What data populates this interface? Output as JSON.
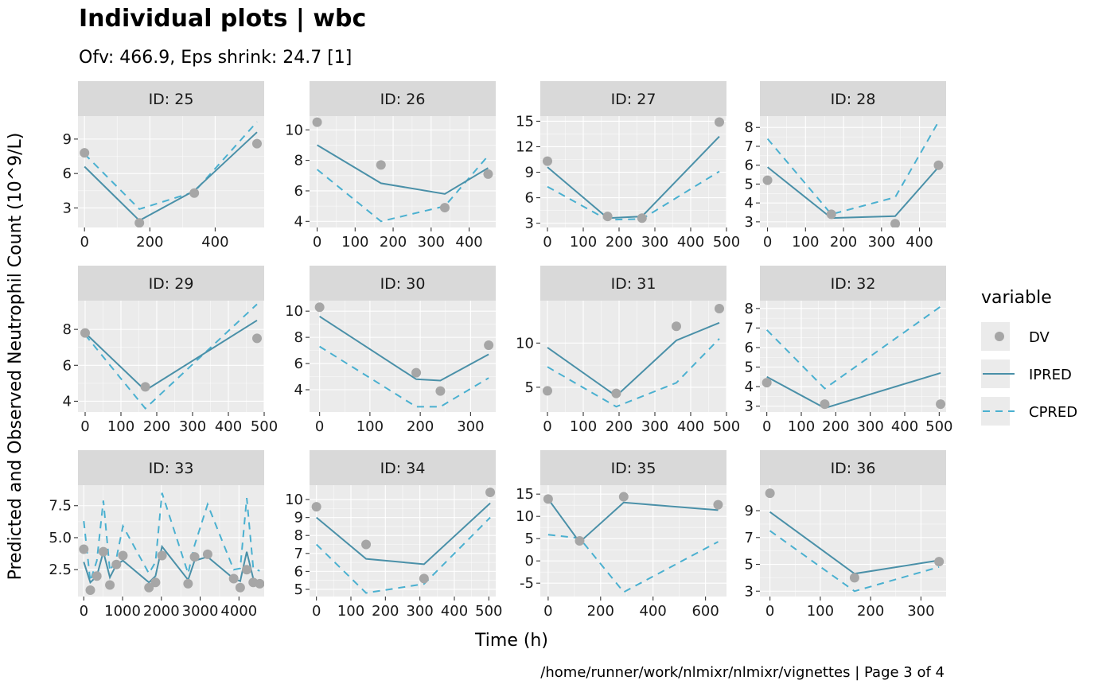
{
  "chart_data": {
    "type": "line",
    "title": "Individual plots | wbc",
    "subtitle": "Ofv: 466.9, Eps shrink: 24.7 [1]",
    "xlabel": "Time (h)",
    "ylabel": "Predicted and Observed Neutrophil Count (10^9/L)",
    "caption": "/home/runner/work/nlmixr/nlmixr/vignettes | Page 3 of 4",
    "legend": {
      "title": "variable",
      "placement": "right",
      "items": [
        {
          "key": "DV",
          "label": "DV",
          "kind": "point",
          "color": "#a6a6a6"
        },
        {
          "key": "IPRED",
          "label": "IPRED",
          "kind": "solid",
          "color": "#4a90a8"
        },
        {
          "key": "CPRED",
          "label": "CPRED",
          "kind": "dashed",
          "color": "#4ab0d0"
        }
      ]
    },
    "panels": [
      {
        "id": "ID: 25",
        "xlim": [
          -20,
          550
        ],
        "ylim": [
          1.3,
          11.0
        ],
        "xticks": [
          0,
          200,
          400
        ],
        "yticks": [
          3,
          6,
          9
        ],
        "dv": [
          [
            0,
            7.8
          ],
          [
            168,
            1.7
          ],
          [
            336,
            4.3
          ],
          [
            528,
            8.6
          ]
        ],
        "ipred": [
          [
            0,
            6.6
          ],
          [
            168,
            1.9
          ],
          [
            336,
            4.5
          ],
          [
            528,
            9.6
          ]
        ],
        "cpred": [
          [
            0,
            7.7
          ],
          [
            168,
            2.9
          ],
          [
            336,
            4.4
          ],
          [
            528,
            10.5
          ]
        ]
      },
      {
        "id": "ID: 26",
        "xlim": [
          -20,
          470
        ],
        "ylim": [
          3.6,
          10.9
        ],
        "xticks": [
          0,
          100,
          200,
          300,
          400
        ],
        "yticks": [
          4,
          6,
          8,
          10
        ],
        "dv": [
          [
            0,
            10.5
          ],
          [
            168,
            7.7
          ],
          [
            336,
            4.9
          ],
          [
            450,
            7.1
          ]
        ],
        "ipred": [
          [
            0,
            9.0
          ],
          [
            168,
            6.5
          ],
          [
            336,
            5.8
          ],
          [
            450,
            7.5
          ]
        ],
        "cpred": [
          [
            0,
            7.4
          ],
          [
            168,
            4.0
          ],
          [
            336,
            5.0
          ],
          [
            450,
            8.3
          ]
        ]
      },
      {
        "id": "ID: 27",
        "xlim": [
          -20,
          500
        ],
        "ylim": [
          2.5,
          15.6
        ],
        "xticks": [
          0,
          100,
          200,
          300,
          400,
          500
        ],
        "yticks": [
          3,
          6,
          9,
          12,
          15
        ],
        "dv": [
          [
            0,
            10.3
          ],
          [
            168,
            3.8
          ],
          [
            264,
            3.6
          ],
          [
            480,
            14.9
          ]
        ],
        "ipred": [
          [
            0,
            9.6
          ],
          [
            168,
            3.6
          ],
          [
            264,
            3.8
          ],
          [
            480,
            13.2
          ]
        ],
        "cpred": [
          [
            0,
            7.3
          ],
          [
            168,
            3.4
          ],
          [
            264,
            3.5
          ],
          [
            480,
            9.1
          ]
        ]
      },
      {
        "id": "ID: 28",
        "xlim": [
          -20,
          470
        ],
        "ylim": [
          2.7,
          8.6
        ],
        "xticks": [
          0,
          100,
          200,
          300,
          400
        ],
        "yticks": [
          3,
          4,
          5,
          6,
          7,
          8
        ],
        "dv": [
          [
            0,
            5.2
          ],
          [
            168,
            3.4
          ],
          [
            336,
            2.9
          ],
          [
            450,
            6.0
          ]
        ],
        "ipred": [
          [
            0,
            5.9
          ],
          [
            168,
            3.2
          ],
          [
            336,
            3.3
          ],
          [
            450,
            5.9
          ]
        ],
        "cpred": [
          [
            0,
            7.4
          ],
          [
            168,
            3.4
          ],
          [
            336,
            4.3
          ],
          [
            450,
            8.3
          ]
        ]
      },
      {
        "id": "ID: 29",
        "xlim": [
          -20,
          500
        ],
        "ylim": [
          3.4,
          9.6
        ],
        "xticks": [
          0,
          100,
          200,
          300,
          400,
          500
        ],
        "yticks": [
          4,
          6,
          8
        ],
        "dv": [
          [
            0,
            7.8
          ],
          [
            168,
            4.8
          ],
          [
            480,
            7.5
          ]
        ],
        "ipred": [
          [
            0,
            7.8
          ],
          [
            168,
            4.6
          ],
          [
            480,
            8.5
          ]
        ],
        "cpred": [
          [
            0,
            7.7
          ],
          [
            168,
            3.6
          ],
          [
            480,
            9.4
          ]
        ]
      },
      {
        "id": "ID: 30",
        "xlim": [
          -20,
          350
        ],
        "ylim": [
          2.3,
          10.8
        ],
        "xticks": [
          0,
          100,
          200,
          300
        ],
        "yticks": [
          4,
          6,
          8,
          10
        ],
        "dv": [
          [
            0,
            10.3
          ],
          [
            192,
            5.3
          ],
          [
            240,
            3.9
          ],
          [
            336,
            7.4
          ]
        ],
        "ipred": [
          [
            0,
            9.6
          ],
          [
            192,
            4.8
          ],
          [
            240,
            4.7
          ],
          [
            336,
            6.7
          ]
        ],
        "cpred": [
          [
            0,
            7.3
          ],
          [
            192,
            2.7
          ],
          [
            240,
            2.7
          ],
          [
            336,
            4.9
          ]
        ]
      },
      {
        "id": "ID: 31",
        "xlim": [
          -20,
          500
        ],
        "ylim": [
          2.2,
          14.8
        ],
        "xticks": [
          0,
          100,
          200,
          300,
          400,
          500
        ],
        "yticks": [
          5,
          10
        ],
        "dv": [
          [
            0,
            4.6
          ],
          [
            192,
            4.3
          ],
          [
            360,
            11.9
          ],
          [
            480,
            13.9
          ]
        ],
        "ipred": [
          [
            0,
            9.5
          ],
          [
            192,
            4.0
          ],
          [
            360,
            10.3
          ],
          [
            480,
            12.3
          ]
        ],
        "cpred": [
          [
            0,
            7.3
          ],
          [
            192,
            2.8
          ],
          [
            360,
            5.5
          ],
          [
            480,
            10.5
          ]
        ]
      },
      {
        "id": "ID: 32",
        "xlim": [
          -20,
          520
        ],
        "ylim": [
          2.7,
          8.4
        ],
        "xticks": [
          0,
          100,
          200,
          300,
          400,
          500
        ],
        "yticks": [
          3,
          4,
          5,
          6,
          7,
          8
        ],
        "dv": [
          [
            0,
            4.2
          ],
          [
            168,
            3.1
          ],
          [
            504,
            3.1
          ]
        ],
        "ipred": [
          [
            0,
            4.5
          ],
          [
            168,
            2.9
          ],
          [
            504,
            4.7
          ]
        ],
        "cpred": [
          [
            0,
            6.9
          ],
          [
            168,
            3.9
          ],
          [
            504,
            8.1
          ]
        ]
      },
      {
        "id": "ID: 33",
        "xlim": [
          -150,
          4650
        ],
        "ylim": [
          0.4,
          9.1
        ],
        "xticks": [
          0,
          1000,
          2000,
          3000,
          4000
        ],
        "yticks": [
          2.5,
          5.0,
          7.5
        ],
        "dv": [
          [
            0,
            4.1
          ],
          [
            168,
            0.9
          ],
          [
            336,
            2.0
          ],
          [
            504,
            3.9
          ],
          [
            672,
            1.3
          ],
          [
            840,
            2.9
          ],
          [
            1008,
            3.6
          ],
          [
            1680,
            1.1
          ],
          [
            1848,
            1.5
          ],
          [
            2016,
            3.6
          ],
          [
            2688,
            1.4
          ],
          [
            2856,
            3.5
          ],
          [
            3192,
            3.7
          ],
          [
            3864,
            1.8
          ],
          [
            4032,
            1.1
          ],
          [
            4200,
            2.5
          ],
          [
            4368,
            1.5
          ],
          [
            4536,
            1.4
          ]
        ],
        "ipred": [
          [
            0,
            3.1
          ],
          [
            168,
            1.5
          ],
          [
            336,
            2.0
          ],
          [
            504,
            3.9
          ],
          [
            672,
            1.9
          ],
          [
            840,
            2.9
          ],
          [
            1008,
            3.2
          ],
          [
            1680,
            1.5
          ],
          [
            1848,
            2.0
          ],
          [
            2016,
            4.3
          ],
          [
            2688,
            1.7
          ],
          [
            2856,
            3.2
          ],
          [
            3192,
            3.5
          ],
          [
            3864,
            1.8
          ],
          [
            4032,
            1.6
          ],
          [
            4200,
            3.9
          ],
          [
            4368,
            1.8
          ],
          [
            4536,
            1.5
          ]
        ],
        "cpred": [
          [
            0,
            6.3
          ],
          [
            168,
            1.6
          ],
          [
            336,
            3.2
          ],
          [
            504,
            7.9
          ],
          [
            672,
            2.4
          ],
          [
            840,
            3.4
          ],
          [
            1008,
            5.9
          ],
          [
            1680,
            2.2
          ],
          [
            1848,
            3.1
          ],
          [
            2016,
            8.5
          ],
          [
            2688,
            2.2
          ],
          [
            2856,
            4.4
          ],
          [
            3192,
            7.6
          ],
          [
            3864,
            2.5
          ],
          [
            4032,
            2.6
          ],
          [
            4200,
            8.1
          ],
          [
            4368,
            2.6
          ],
          [
            4536,
            2.4
          ]
        ]
      },
      {
        "id": "ID: 34",
        "xlim": [
          -20,
          520
        ],
        "ylim": [
          4.6,
          10.8
        ],
        "xticks": [
          0,
          100,
          200,
          300,
          400,
          500
        ],
        "yticks": [
          5,
          6,
          7,
          8,
          9,
          10
        ],
        "dv": [
          [
            0,
            9.6
          ],
          [
            144,
            7.5
          ],
          [
            312,
            5.6
          ],
          [
            504,
            10.4
          ]
        ],
        "ipred": [
          [
            0,
            9.0
          ],
          [
            144,
            6.7
          ],
          [
            312,
            6.4
          ],
          [
            504,
            9.8
          ]
        ],
        "cpred": [
          [
            0,
            7.5
          ],
          [
            144,
            4.8
          ],
          [
            312,
            5.3
          ],
          [
            504,
            9.0
          ]
        ]
      },
      {
        "id": "ID: 35",
        "xlim": [
          -30,
          680
        ],
        "ylim": [
          -8.0,
          17.0
        ],
        "xticks": [
          0,
          200,
          400,
          600
        ],
        "yticks": [
          -5,
          0,
          5,
          10,
          15
        ],
        "dv": [
          [
            0,
            13.9
          ],
          [
            120,
            4.5
          ],
          [
            288,
            14.4
          ],
          [
            648,
            12.6
          ]
        ],
        "ipred": [
          [
            0,
            13.9
          ],
          [
            120,
            4.2
          ],
          [
            288,
            13.1
          ],
          [
            648,
            11.4
          ]
        ],
        "cpred": [
          [
            0,
            5.9
          ],
          [
            120,
            5.1
          ],
          [
            288,
            -7.0
          ],
          [
            648,
            4.3
          ]
        ]
      },
      {
        "id": "ID: 36",
        "xlim": [
          -20,
          350
        ],
        "ylim": [
          2.6,
          10.9
        ],
        "xticks": [
          0,
          100,
          200,
          300
        ],
        "yticks": [
          3,
          5,
          7,
          9
        ],
        "dv": [
          [
            0,
            10.3
          ],
          [
            168,
            4.0
          ],
          [
            336,
            5.2
          ]
        ],
        "ipred": [
          [
            0,
            8.9
          ],
          [
            168,
            4.3
          ],
          [
            336,
            5.3
          ]
        ],
        "cpred": [
          [
            0,
            7.5
          ],
          [
            168,
            3.0
          ],
          [
            336,
            4.8
          ]
        ]
      }
    ]
  }
}
